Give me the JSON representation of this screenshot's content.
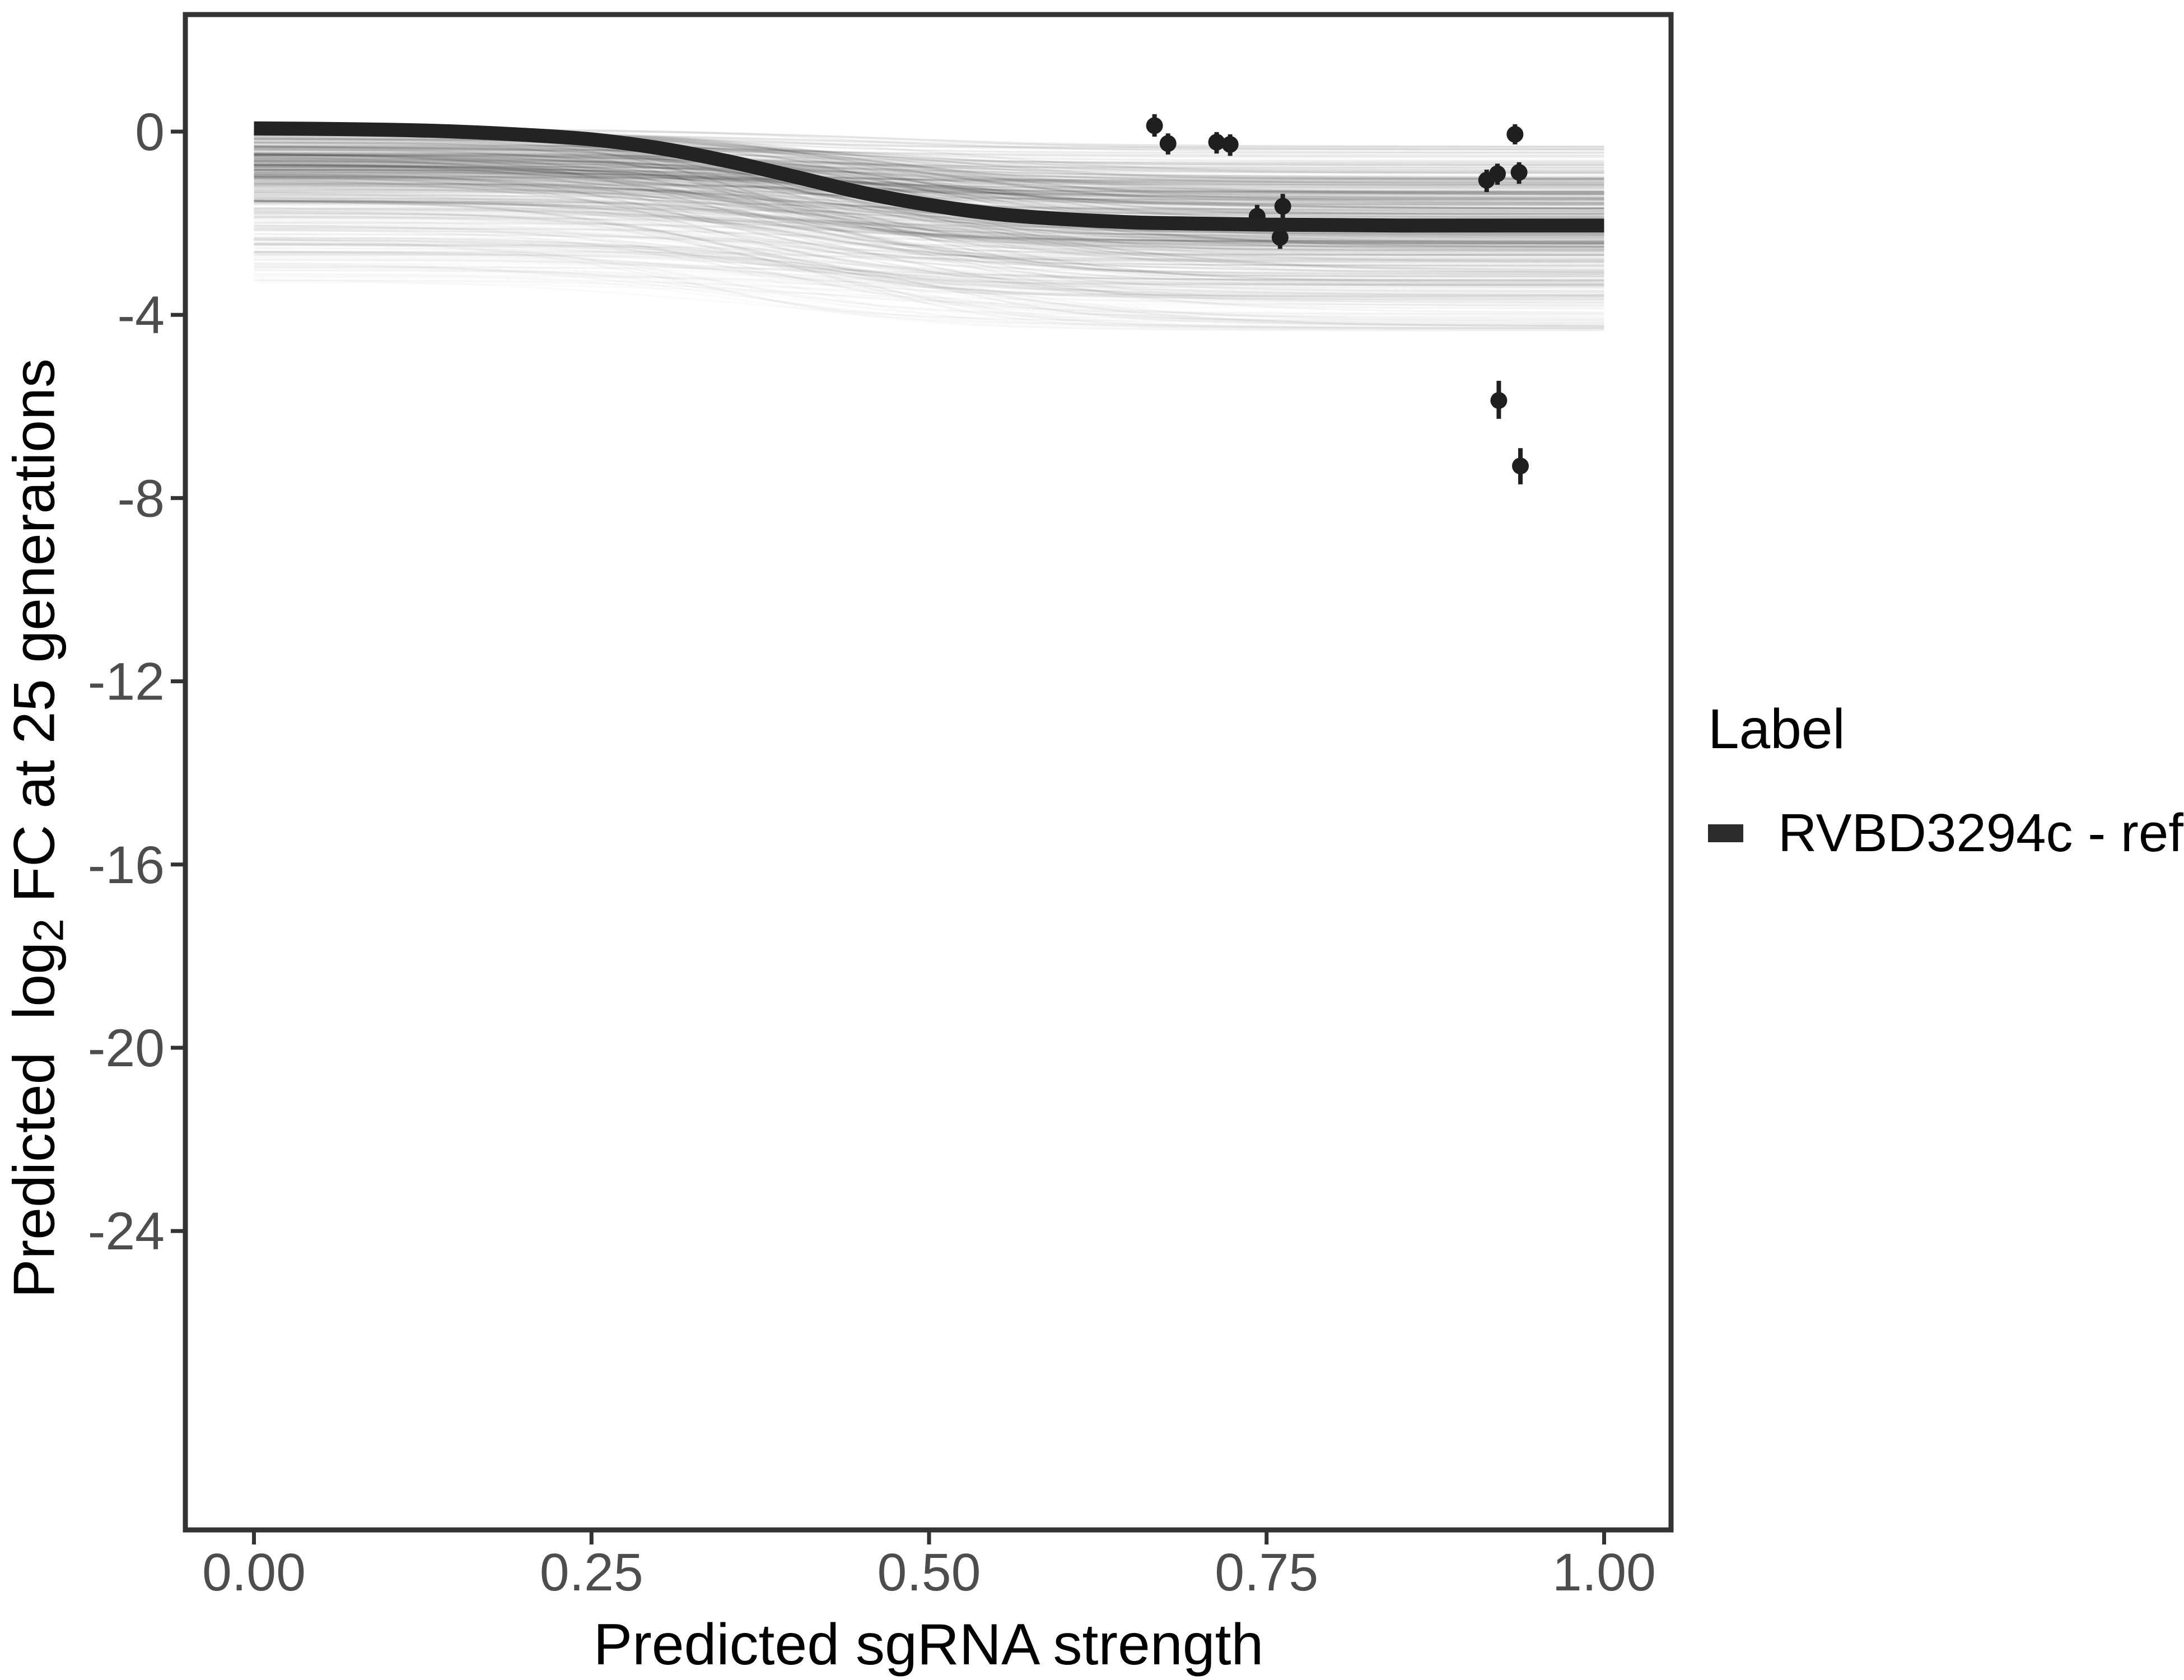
{
  "colors": {
    "panel_border": "#333333",
    "tick_mark": "#333333",
    "tick_label": "#4d4d4d",
    "axis_title": "#000000",
    "reference_line": "#232323",
    "point": "#1f1f1f",
    "posterior_draw": "#1a1a1a",
    "background": "#ffffff"
  },
  "axes": {
    "x": {
      "title": "Predicted sgRNA strength",
      "ticks": [
        0.0,
        0.25,
        0.5,
        0.75,
        1.0
      ],
      "tick_labels": [
        "0.00",
        "0.25",
        "0.50",
        "0.75",
        "1.00"
      ]
    },
    "y": {
      "title_pre": "Predicted  log",
      "title_sub": "2",
      "title_post": " FC at 25 generations",
      "ticks": [
        0,
        -4,
        -8,
        -12,
        -16,
        -20,
        -24
      ],
      "tick_labels": [
        "0",
        "-4",
        "-8",
        "-12",
        "-16",
        "-20",
        "-24"
      ]
    }
  },
  "legend": {
    "title": "Label",
    "entries": [
      {
        "label": "RVBD3294c - ref",
        "key_color": "#2b2b2b"
      }
    ]
  },
  "chart_data": {
    "type": "line",
    "title": "",
    "xlabel": "Predicted sgRNA strength",
    "ylabel": "Predicted log2 FC at 25 generations",
    "xlim": [
      -0.05,
      1.05
    ],
    "ylim": [
      -30.5,
      2.6
    ],
    "x_ticks": [
      0.0,
      0.25,
      0.5,
      0.75,
      1.0
    ],
    "y_ticks": [
      0,
      -4,
      -8,
      -12,
      -16,
      -20,
      -24
    ],
    "grid": false,
    "legend_position": "right",
    "ref_curve": {
      "name": "RVBD3294c - ref",
      "x": [
        0.0,
        0.05,
        0.1,
        0.15,
        0.2,
        0.25,
        0.3,
        0.35,
        0.4,
        0.45,
        0.5,
        0.55,
        0.6,
        0.65,
        0.7,
        0.75,
        0.8,
        0.85,
        0.9,
        0.95,
        1.0
      ],
      "y": [
        0.07,
        0.06,
        0.04,
        0.0,
        -0.07,
        -0.17,
        -0.36,
        -0.64,
        -0.98,
        -1.33,
        -1.6,
        -1.8,
        -1.91,
        -1.98,
        -2.01,
        -2.03,
        -2.04,
        -2.05,
        -2.05,
        -2.05,
        -2.05
      ]
    },
    "points": [
      {
        "x": 0.667,
        "y": 0.13,
        "ymin": -0.11,
        "ymax": 0.38
      },
      {
        "x": 0.677,
        "y": -0.26,
        "ymin": -0.5,
        "ymax": -0.04
      },
      {
        "x": 0.713,
        "y": -0.23,
        "ymin": -0.48,
        "ymax": -0.01
      },
      {
        "x": 0.723,
        "y": -0.28,
        "ymin": -0.53,
        "ymax": -0.06
      },
      {
        "x": 0.743,
        "y": -1.85,
        "ymin": -2.14,
        "ymax": -1.6
      },
      {
        "x": 0.762,
        "y": -1.63,
        "ymin": -1.9,
        "ymax": -1.36
      },
      {
        "x": 0.76,
        "y": -2.31,
        "ymin": -2.56,
        "ymax": -2.04
      },
      {
        "x": 0.934,
        "y": -0.06,
        "ymin": -0.28,
        "ymax": 0.16
      },
      {
        "x": 0.913,
        "y": -1.06,
        "ymin": -1.32,
        "ymax": -0.83
      },
      {
        "x": 0.921,
        "y": -0.92,
        "ymin": -1.16,
        "ymax": -0.7
      },
      {
        "x": 0.937,
        "y": -0.89,
        "ymin": -1.14,
        "ymax": -0.67
      },
      {
        "x": 0.922,
        "y": -5.87,
        "ymin": -6.27,
        "ymax": -5.44
      },
      {
        "x": 0.938,
        "y": -7.3,
        "ymin": -7.7,
        "ymax": -6.91
      }
    ],
    "posterior_draws": {
      "description": "translucent sigmoid posterior-draw curves forming gray band",
      "count": 340,
      "seed": 11,
      "start_value_range": [
        0.08,
        -3.3
      ],
      "end_value_range": [
        -0.3,
        -4.35
      ],
      "midpoint_range": [
        0.32,
        0.54
      ],
      "steepness_range": [
        0.055,
        0.105
      ]
    }
  }
}
